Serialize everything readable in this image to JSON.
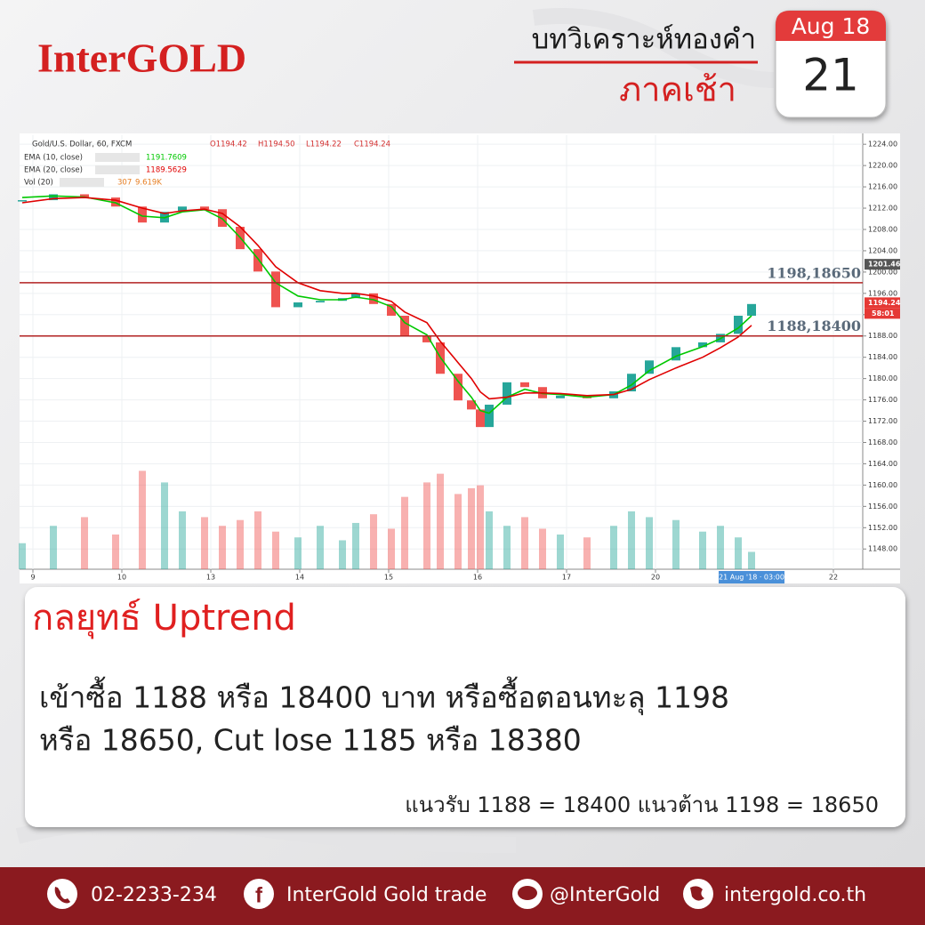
{
  "header": {
    "logo": "InterGOLD",
    "title": "บทวิเคราะห์ทองคำ",
    "subtitle": "ภาคเช้า"
  },
  "calendar": {
    "month": "Aug 18",
    "day": "21"
  },
  "chart_data": {
    "type": "line",
    "symbol": "Gold/U.S. Dollar, 60, FXCM",
    "ohlc": [
      "O1194.42",
      "H1194.50",
      "L1194.22",
      "C1194.24"
    ],
    "x": [
      -0.12,
      0.23,
      0.58,
      0.93,
      1.23,
      1.48,
      1.68,
      1.93,
      2.13,
      2.33,
      2.53,
      2.73,
      2.98,
      3.23,
      3.48,
      3.63,
      3.83,
      4.03,
      4.18,
      4.43,
      4.58,
      4.78,
      4.93,
      5.03,
      5.13,
      5.33,
      5.53,
      5.73,
      5.93,
      6.23,
      6.53,
      6.73,
      6.93,
      7.23,
      7.53,
      7.73,
      7.93,
      8.08
    ],
    "series": [
      {
        "name": "Gold/U.S. Dollar, 60, FXCM",
        "color": "#26a69a",
        "down_color": "#ef5350",
        "values": [
          1213.5,
          1214.6,
          1214,
          1212.3,
          1209.3,
          1211.3,
          1212.3,
          1211.8,
          1208.5,
          1204.3,
          1200.1,
          1193.4,
          1194.3,
          1194.6,
          1195.1,
          1196,
          1194,
          1191.8,
          1187.9,
          1186.8,
          1180.9,
          1175.9,
          1174.2,
          1170.9,
          1175.1,
          1179.3,
          1178.4,
          1176.3,
          1176.8,
          1176.3,
          1177.6,
          1180.9,
          1183.4,
          1185.9,
          1186.8,
          1188.4,
          1191.8,
          1194
        ]
      },
      {
        "name": "EMA (10, close)",
        "color": "#00c800",
        "legend_value": 1191.7609,
        "values": [
          1214,
          1214.3,
          1214.1,
          1213,
          1210.5,
          1210.2,
          1211.3,
          1211.7,
          1210,
          1206.5,
          1202.5,
          1198,
          1195.5,
          1194.8,
          1194.8,
          1195.3,
          1194.8,
          1193.5,
          1190.5,
          1188.2,
          1184,
          1179.5,
          1176.5,
          1174,
          1173.5,
          1176.5,
          1178,
          1177.2,
          1177,
          1176.5,
          1177,
          1178.8,
          1181.5,
          1184.2,
          1186,
          1187.5,
          1189.5,
          1191.8
        ]
      },
      {
        "name": "EMA (20, close)",
        "color": "#e00000",
        "legend_value": 1189.5629,
        "values": [
          1213,
          1213.8,
          1214,
          1213.5,
          1212,
          1211,
          1211.5,
          1211.8,
          1211,
          1208.5,
          1205,
          1201,
          1198,
          1196.5,
          1196,
          1196,
          1195.5,
          1194.5,
          1192.5,
          1190.5,
          1187,
          1183,
          1180,
          1177.5,
          1176.2,
          1176.5,
          1177.3,
          1177.3,
          1177.2,
          1176.8,
          1177,
          1178,
          1179.8,
          1182,
          1184,
          1185.8,
          1187.8,
          1190
        ]
      },
      {
        "name": "Vol (20)",
        "axis": "y2",
        "color": "#f59a7a",
        "legend_value": 307,
        "legend_ma": {
          "value": 9619,
          "label": "9.619K"
        },
        "values": [
          90,
          150,
          180,
          120,
          340,
          300,
          200,
          180,
          150,
          170,
          200,
          130,
          110,
          150,
          100,
          160,
          190,
          140,
          250,
          300,
          330,
          260,
          280,
          290,
          200,
          150,
          180,
          140,
          120,
          110,
          150,
          200,
          180,
          170,
          130,
          150,
          110,
          60
        ]
      }
    ],
    "xlim": [
      -0.15,
      9.33
    ],
    "xticks": [
      {
        "value": 0,
        "label": "9"
      },
      {
        "value": 1,
        "label": "10"
      },
      {
        "value": 2,
        "label": "13"
      },
      {
        "value": 3,
        "label": "14"
      },
      {
        "value": 4,
        "label": "15"
      },
      {
        "value": 5,
        "label": "16"
      },
      {
        "value": 6,
        "label": "17"
      },
      {
        "value": 7,
        "label": "20"
      },
      {
        "value": 9,
        "label": "22"
      }
    ],
    "cursor": {
      "value": 8.08,
      "label": "21 Aug '18 · 03:00"
    },
    "ylim": [
      1144.2,
      1225.7
    ],
    "yticks": [
      {
        "value": 1148,
        "label": "1148.00"
      },
      {
        "value": 1152,
        "label": "1152.00"
      },
      {
        "value": 1156,
        "label": "1156.00"
      },
      {
        "value": 1160,
        "label": "1160.00"
      },
      {
        "value": 1164,
        "label": "1164.00"
      },
      {
        "value": 1168,
        "label": "1168.00"
      },
      {
        "value": 1172,
        "label": "1172.00"
      },
      {
        "value": 1176,
        "label": "1176.00"
      },
      {
        "value": 1180,
        "label": "1180.00"
      },
      {
        "value": 1184,
        "label": "1184.00"
      },
      {
        "value": 1188,
        "label": "1188.00"
      },
      {
        "value": 1192,
        "label": "1192.00"
      },
      {
        "value": 1196,
        "label": "1196.00"
      },
      {
        "value": 1200,
        "label": "1200.00"
      },
      {
        "value": 1204,
        "label": "1204.00"
      },
      {
        "value": 1208,
        "label": "1208.00"
      },
      {
        "value": 1212,
        "label": "1212.00"
      },
      {
        "value": 1216,
        "label": "1216.00"
      },
      {
        "value": 1220,
        "label": "1220.00"
      },
      {
        "value": 1224,
        "label": "1224.00"
      }
    ],
    "y2lim": [
      0,
      1500
    ],
    "grid": true,
    "hlines": [
      {
        "value": 1198,
        "label": "1198,18650",
        "color": "#b22222"
      },
      {
        "value": 1188,
        "label": "1188,18400",
        "color": "#b22222"
      }
    ],
    "price_tags": [
      {
        "value": 1201.46,
        "color": "#555555"
      },
      {
        "value": 1194.24,
        "color": "#e53935",
        "countdown": "58:01"
      }
    ]
  },
  "strategy": {
    "title": "กลยุทธ์ Uptrend",
    "lines": [
      "เข้าซื้อ 1188 หรือ 18400 บาท หรือซื้อตอนทะลุ 1198",
      "หรือ 18650, Cut lose 1185 หรือ 18380"
    ],
    "note": "แนวรับ 1188 = 18400 แนวต้าน 1198 = 18650"
  },
  "footer": {
    "phone": "02-2233-234",
    "facebook": "InterGold Gold trade",
    "line": "@InterGold",
    "web": "intergold.co.th"
  }
}
